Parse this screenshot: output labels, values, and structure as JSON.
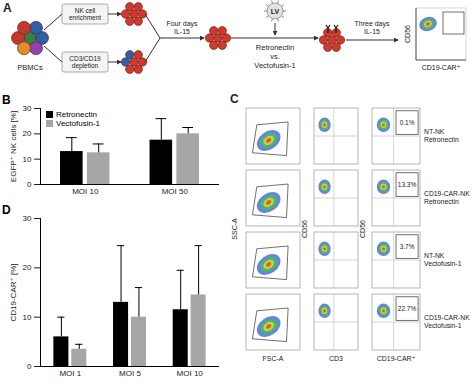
{
  "figure": {
    "panel_labels": [
      "A",
      "B",
      "C",
      "D"
    ]
  },
  "panel_a": {
    "source": "PBMCs",
    "routes": [
      "NK cell enrichment",
      "CD3/CD19 depletion"
    ],
    "step1": "Four days IL-15",
    "vector": "LV",
    "methods": [
      "Retronectin",
      "vs.",
      "Vectofusin-1"
    ],
    "step2": "Three days IL-15",
    "readout_y": "CD56",
    "readout_x": "CD19-CAR⁺"
  },
  "panel_c": {
    "x_axes": [
      "FSC-A",
      "CD3",
      "CD19-CAR⁺"
    ],
    "y_axes": [
      "SSC-A",
      "CD56",
      "CD56"
    ],
    "rows": [
      {
        "label": "NT-NK Retronectin",
        "percent": "0.1%"
      },
      {
        "label": "CD19-CAR-NK Retronectin",
        "percent": "13.3%"
      },
      {
        "label": "NT-NK Vectofusin-1",
        "percent": "3.7%"
      },
      {
        "label": "CD19-CAR-NK Vectofusin-1",
        "percent": "22.7%"
      }
    ]
  },
  "chart_data": [
    {
      "type": "bar",
      "ylabel": "EGFP⁺ NK cells [%]",
      "categories": [
        "MOI 10",
        "MOI 50"
      ],
      "series": [
        {
          "name": "Retronectin",
          "color": "#000000",
          "values": [
            13,
            17.5
          ],
          "errors": [
            5.5,
            8.5
          ]
        },
        {
          "name": "Vectofusin-1",
          "color": "#a6a6a6",
          "values": [
            12.5,
            20
          ],
          "errors": [
            3.5,
            2.5
          ]
        }
      ],
      "ylim": [
        0,
        30
      ],
      "yticks": [
        0,
        10,
        20,
        30
      ],
      "legend": "top-left"
    },
    {
      "type": "bar",
      "ylabel": "CD19-CAR⁺ [%]",
      "categories": [
        "MOI 1",
        "MOI 5",
        "MOI 10"
      ],
      "series": [
        {
          "name": "Retronectin",
          "color": "#000000",
          "values": [
            6,
            13,
            11.5
          ],
          "errors": [
            4,
            11.5,
            8
          ]
        },
        {
          "name": "Vectofusin-1",
          "color": "#a6a6a6",
          "values": [
            3.5,
            10,
            14.5
          ],
          "errors": [
            1,
            6,
            10
          ]
        }
      ],
      "ylim": [
        0,
        30
      ],
      "yticks": [
        0,
        10,
        20,
        30
      ]
    }
  ]
}
